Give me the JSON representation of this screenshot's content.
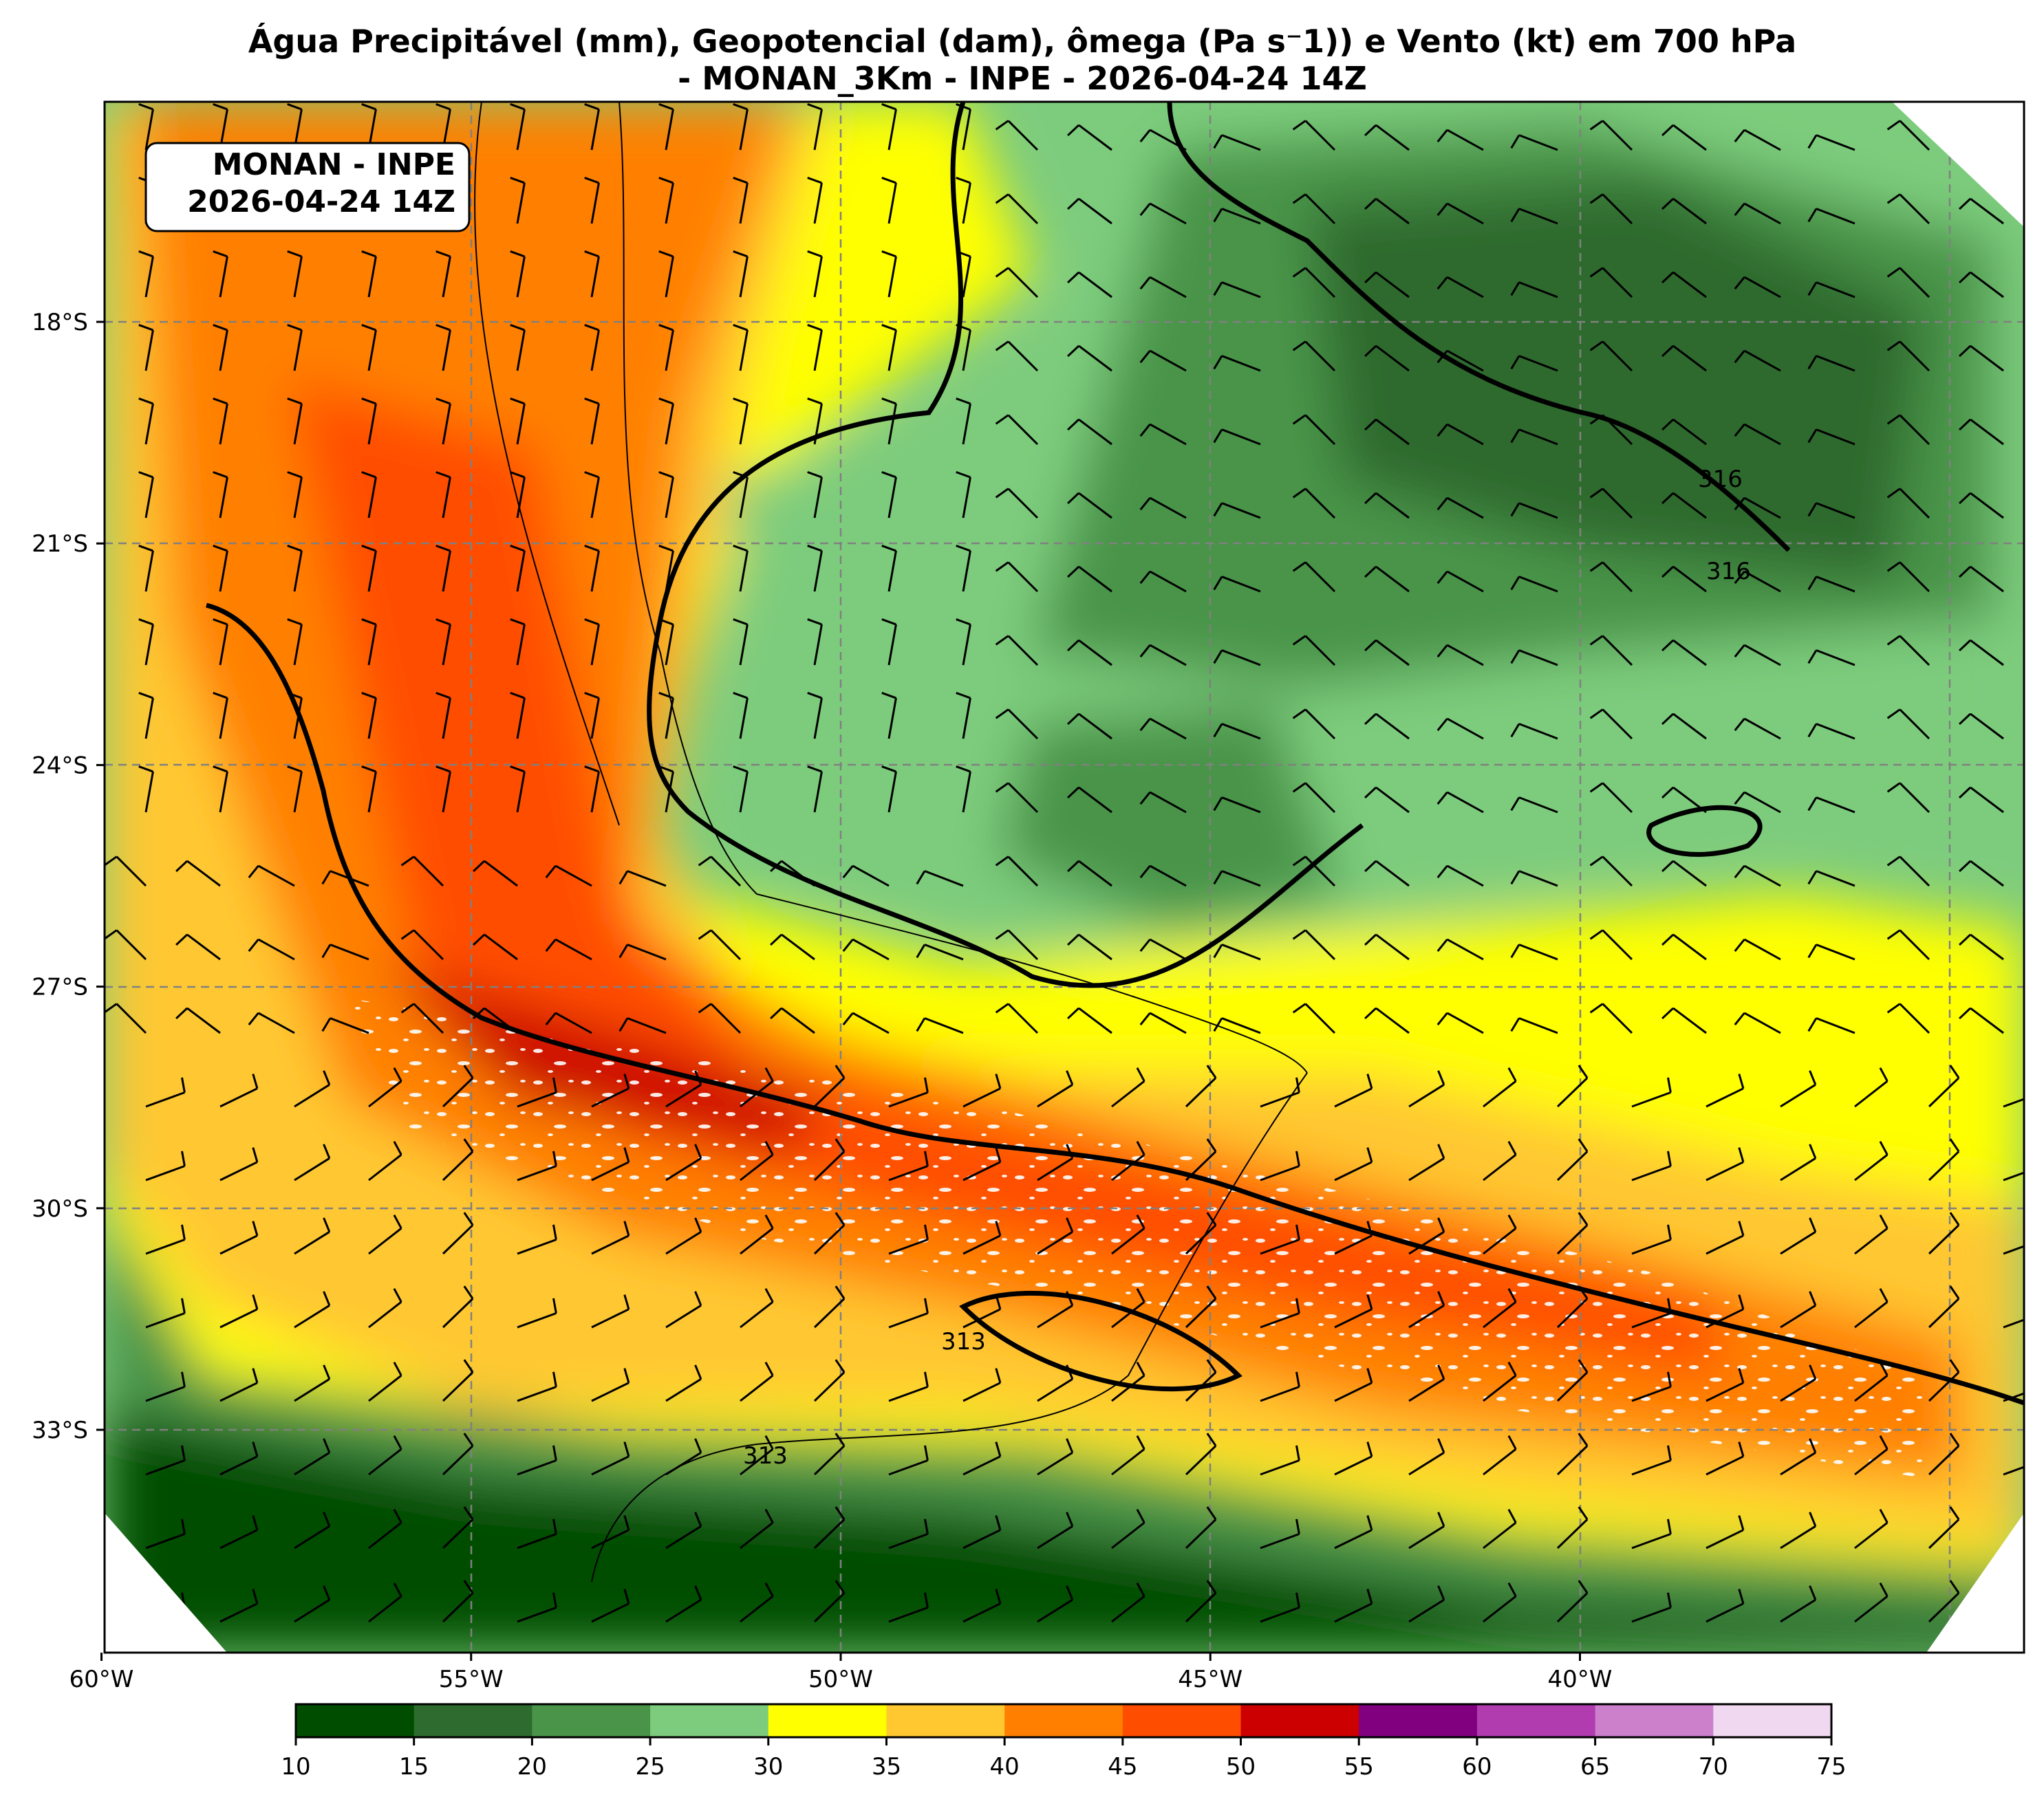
{
  "title": {
    "line1": "Água Precipitável (mm), Geopotencial (dam), ômega (Pa s⁻1)) e Vento (kt) em 700 hPa",
    "line2": "- MONAN_3Km - INPE - 2026-04-24 14Z"
  },
  "info_box": {
    "line1": "MONAN - INPE",
    "line2": "2026-04-24 14Z"
  },
  "map": {
    "lon_ticks": [
      {
        "label": "60°W",
        "value": -60
      },
      {
        "label": "55°W",
        "value": -55
      },
      {
        "label": "50°W",
        "value": -50
      },
      {
        "label": "45°W",
        "value": -45
      },
      {
        "label": "40°W",
        "value": -40
      }
    ],
    "lat_ticks": [
      {
        "label": "18°S",
        "value": -18
      },
      {
        "label": "21°S",
        "value": -21
      },
      {
        "label": "24°S",
        "value": -24
      },
      {
        "label": "27°S",
        "value": -27
      },
      {
        "label": "30°S",
        "value": -30
      },
      {
        "label": "33°S",
        "value": -33
      }
    ],
    "contour_labels": [
      "316",
      "316",
      "313",
      "313"
    ]
  },
  "colorbar": {
    "levels": [
      "10",
      "15",
      "20",
      "25",
      "30",
      "35",
      "40",
      "45",
      "50",
      "55",
      "60",
      "65",
      "70",
      "75"
    ],
    "colors": [
      "#004d00",
      "#2e6b2e",
      "#4a944a",
      "#7dcc7d",
      "#ffff00",
      "#ffc830",
      "#ff8000",
      "#ff4d00",
      "#cc0000",
      "#800080",
      "#b03cb0",
      "#cc80cc",
      "#f0d8f0"
    ]
  }
}
